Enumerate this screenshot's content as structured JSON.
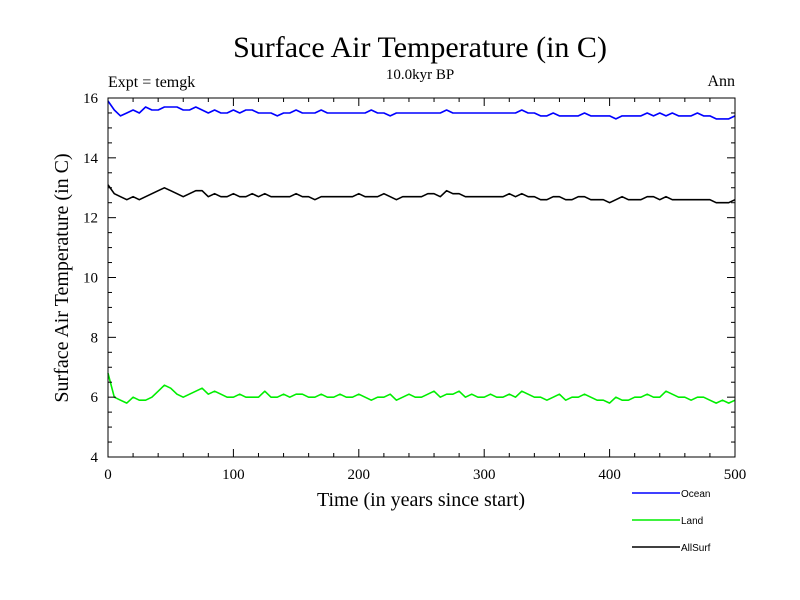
{
  "chart_data": {
    "type": "line",
    "title": "Surface Air Temperature (in C)",
    "subtitle": "10.0kyr BP",
    "left_label": "Expt = temgk",
    "right_label": "Ann",
    "xlabel": "Time (in years since start)",
    "ylabel": "Surface Air Temperature (in C)",
    "xlim": [
      0,
      500
    ],
    "ylim": [
      4,
      16
    ],
    "xticks": [
      0,
      100,
      200,
      300,
      400,
      500
    ],
    "yticks": [
      4,
      6,
      8,
      10,
      12,
      14,
      16
    ],
    "x_start": 0,
    "x_step": 5,
    "series": [
      {
        "name": "Ocean",
        "color": "#0000ff",
        "values": [
          15.9,
          15.6,
          15.4,
          15.5,
          15.6,
          15.5,
          15.7,
          15.6,
          15.6,
          15.7,
          15.7,
          15.7,
          15.6,
          15.6,
          15.7,
          15.6,
          15.5,
          15.6,
          15.5,
          15.5,
          15.6,
          15.5,
          15.6,
          15.6,
          15.5,
          15.5,
          15.5,
          15.4,
          15.5,
          15.5,
          15.6,
          15.5,
          15.5,
          15.5,
          15.6,
          15.5,
          15.5,
          15.5,
          15.5,
          15.5,
          15.5,
          15.5,
          15.6,
          15.5,
          15.5,
          15.4,
          15.5,
          15.5,
          15.5,
          15.5,
          15.5,
          15.5,
          15.5,
          15.5,
          15.6,
          15.5,
          15.5,
          15.5,
          15.5,
          15.5,
          15.5,
          15.5,
          15.5,
          15.5,
          15.5,
          15.5,
          15.6,
          15.5,
          15.5,
          15.4,
          15.4,
          15.5,
          15.4,
          15.4,
          15.4,
          15.4,
          15.5,
          15.4,
          15.4,
          15.4,
          15.4,
          15.3,
          15.4,
          15.4,
          15.4,
          15.4,
          15.5,
          15.4,
          15.5,
          15.4,
          15.5,
          15.4,
          15.4,
          15.4,
          15.5,
          15.4,
          15.4,
          15.3,
          15.3,
          15.3,
          15.4
        ]
      },
      {
        "name": "Land",
        "color": "#00ee00",
        "values": [
          6.8,
          6.0,
          5.9,
          5.8,
          6.0,
          5.9,
          5.9,
          6.0,
          6.2,
          6.4,
          6.3,
          6.1,
          6.0,
          6.1,
          6.2,
          6.3,
          6.1,
          6.2,
          6.1,
          6.0,
          6.0,
          6.1,
          6.0,
          6.0,
          6.0,
          6.2,
          6.0,
          6.0,
          6.1,
          6.0,
          6.1,
          6.1,
          6.0,
          6.0,
          6.1,
          6.0,
          6.0,
          6.1,
          6.0,
          6.0,
          6.1,
          6.0,
          5.9,
          6.0,
          6.0,
          6.1,
          5.9,
          6.0,
          6.1,
          6.0,
          6.0,
          6.1,
          6.2,
          6.0,
          6.1,
          6.1,
          6.2,
          6.0,
          6.1,
          6.0,
          6.0,
          6.1,
          6.0,
          6.0,
          6.1,
          6.0,
          6.2,
          6.1,
          6.0,
          6.0,
          5.9,
          6.0,
          6.1,
          5.9,
          6.0,
          6.0,
          6.1,
          6.0,
          5.9,
          5.9,
          5.8,
          6.0,
          5.9,
          5.9,
          6.0,
          6.0,
          6.1,
          6.0,
          6.0,
          6.2,
          6.1,
          6.0,
          6.0,
          5.9,
          6.0,
          6.0,
          5.9,
          5.8,
          5.9,
          5.8,
          5.9
        ]
      },
      {
        "name": "AllSurf",
        "color": "#000000",
        "values": [
          13.1,
          12.8,
          12.7,
          12.6,
          12.7,
          12.6,
          12.7,
          12.8,
          12.9,
          13.0,
          12.9,
          12.8,
          12.7,
          12.8,
          12.9,
          12.9,
          12.7,
          12.8,
          12.7,
          12.7,
          12.8,
          12.7,
          12.7,
          12.8,
          12.7,
          12.8,
          12.7,
          12.7,
          12.7,
          12.7,
          12.8,
          12.7,
          12.7,
          12.6,
          12.7,
          12.7,
          12.7,
          12.7,
          12.7,
          12.7,
          12.8,
          12.7,
          12.7,
          12.7,
          12.8,
          12.7,
          12.6,
          12.7,
          12.7,
          12.7,
          12.7,
          12.8,
          12.8,
          12.7,
          12.9,
          12.8,
          12.8,
          12.7,
          12.7,
          12.7,
          12.7,
          12.7,
          12.7,
          12.7,
          12.8,
          12.7,
          12.8,
          12.7,
          12.7,
          12.6,
          12.6,
          12.7,
          12.7,
          12.6,
          12.6,
          12.7,
          12.7,
          12.6,
          12.6,
          12.6,
          12.5,
          12.6,
          12.7,
          12.6,
          12.6,
          12.6,
          12.7,
          12.7,
          12.6,
          12.7,
          12.6,
          12.6,
          12.6,
          12.6,
          12.6,
          12.6,
          12.6,
          12.5,
          12.5,
          12.5,
          12.6
        ]
      }
    ]
  }
}
